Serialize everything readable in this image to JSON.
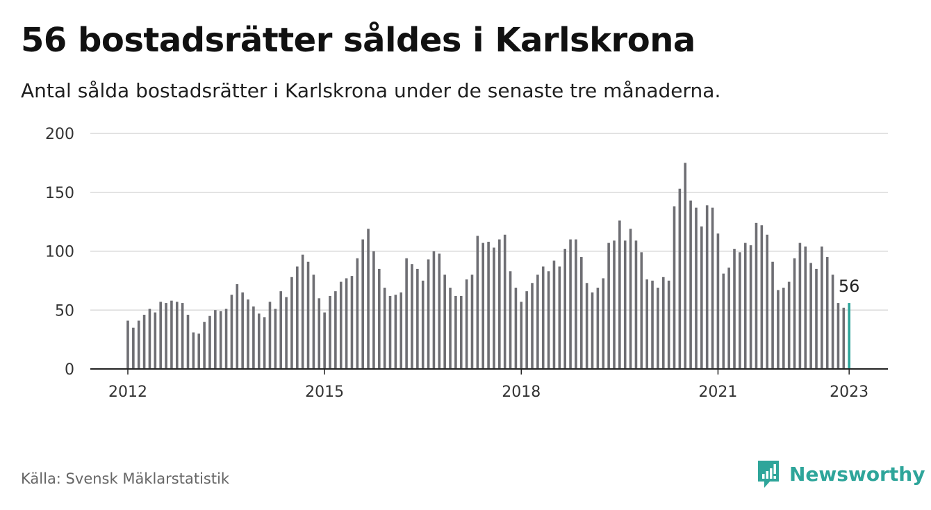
{
  "title": "56 bostadsrätter såldes i Karlskrona",
  "subtitle": "Antal sålda bostadsrätter i Karlskrona under de senaste tre månaderna.",
  "source": "Källa: Svensk Mäklarstatistik",
  "brand": {
    "name": "Newsworthy",
    "icon": "newsworthy-logo-icon",
    "color": "#2ea59a"
  },
  "chart_data": {
    "type": "bar",
    "x_start": "2012-01",
    "x_interval": "month",
    "values": [
      41,
      35,
      41,
      46,
      51,
      48,
      57,
      56,
      58,
      57,
      56,
      46,
      31,
      30,
      40,
      45,
      50,
      49,
      51,
      63,
      72,
      65,
      59,
      53,
      47,
      44,
      57,
      51,
      66,
      61,
      78,
      87,
      97,
      91,
      80,
      60,
      48,
      62,
      66,
      74,
      77,
      79,
      94,
      110,
      119,
      100,
      85,
      69,
      62,
      63,
      65,
      94,
      89,
      85,
      75,
      93,
      100,
      98,
      80,
      69,
      62,
      62,
      76,
      80,
      113,
      107,
      108,
      103,
      110,
      114,
      83,
      69,
      57,
      66,
      73,
      80,
      87,
      83,
      92,
      87,
      102,
      110,
      110,
      95,
      73,
      65,
      69,
      77,
      107,
      109,
      126,
      109,
      119,
      109,
      99,
      76,
      75,
      69,
      78,
      75,
      138,
      153,
      175,
      143,
      137,
      121,
      139,
      137,
      115,
      81,
      86,
      102,
      99,
      107,
      105,
      124,
      122,
      114,
      91,
      67,
      69,
      74,
      94,
      107,
      104,
      90,
      85,
      104,
      95,
      80,
      56,
      52,
      56
    ],
    "x_ticks": [
      "2012",
      "2015",
      "2018",
      "2021",
      "2023"
    ],
    "y_ticks": [
      "0",
      "50",
      "100",
      "150",
      "200"
    ],
    "ylim": [
      0,
      200
    ],
    "grid": true,
    "bar_color": "#6e6e73",
    "highlight_color": "#2ea59a",
    "highlight_label": "56"
  }
}
